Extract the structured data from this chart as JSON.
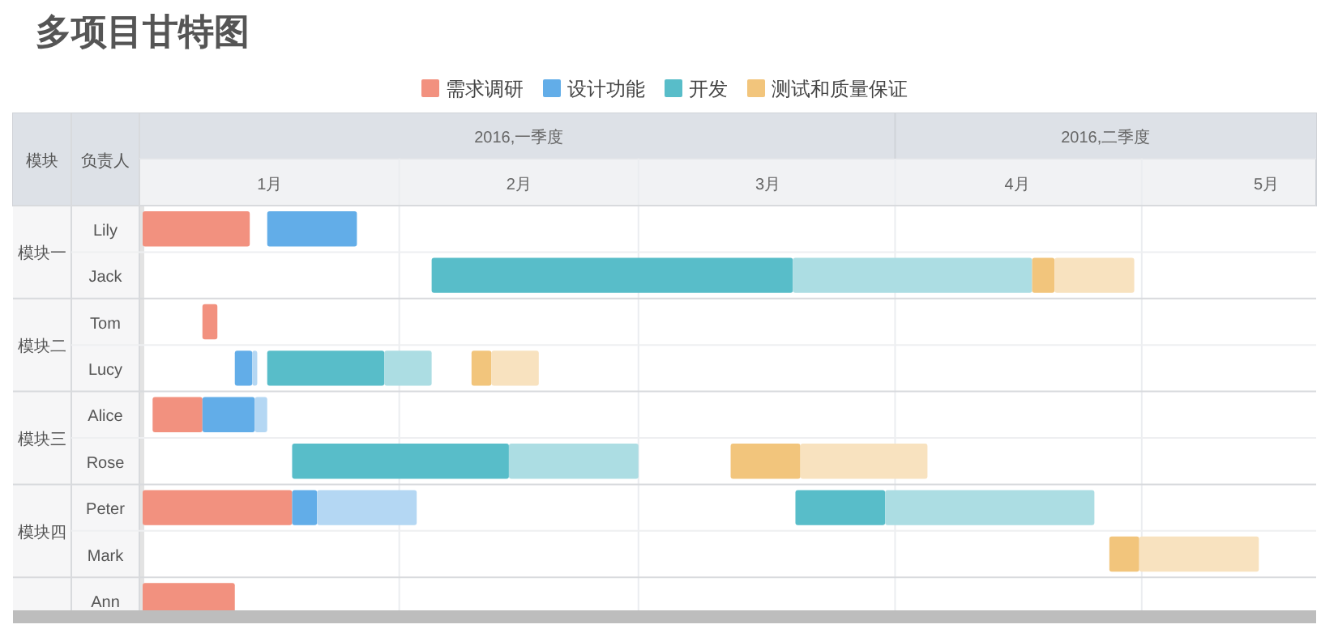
{
  "chart_data": {
    "type": "bar",
    "title": "多项目甘特图",
    "orientation": "horizontal",
    "legend": "top",
    "grid": true,
    "ylabel": "负责人",
    "annotations": [
      "模块",
      "模块一",
      "模块二",
      "模块三",
      "模块四",
      "2016,一季度",
      "2016,二季度"
    ],
    "categories": [
      "Lily",
      "Jack",
      "Tom",
      "Lucy",
      "Alice",
      "Rose",
      "Peter",
      "Mark",
      "Ann"
    ],
    "xlim": [
      0.49,
      5.2
    ],
    "xticks": [
      {
        "value": 1,
        "label": "1月"
      },
      {
        "value": 1.52,
        "label": null
      },
      {
        "value": 2,
        "label": "2月"
      },
      {
        "value": 2.48,
        "label": null
      },
      {
        "value": 3,
        "label": "3月"
      },
      {
        "value": 3.51,
        "label": null
      },
      {
        "value": 4,
        "label": "4月"
      },
      {
        "value": 4.5,
        "label": null
      },
      {
        "value": 5,
        "label": "5月"
      }
    ],
    "series": [
      {
        "name": "需求调研",
        "color": "#f2917f",
        "base": [
          0.49,
          null,
          0.73,
          null,
          0.53,
          null,
          0.49,
          null,
          0.49
        ],
        "values": [
          0.43,
          null,
          0.06,
          null,
          0.2,
          null,
          0.6,
          null,
          0.37
        ]
      },
      {
        "name": "设计功能",
        "color": "#62ade8",
        "base": [
          0.99,
          null,
          null,
          0.86,
          0.73,
          null,
          1.09,
          null,
          null
        ],
        "values": [
          0.36,
          null,
          null,
          0.07,
          0.21,
          null,
          0.1,
          null,
          null
        ]
      },
      {
        "color": "#b4d7f3",
        "base": [
          null,
          null,
          null,
          0.93,
          0.94,
          null,
          1.19,
          null,
          null
        ],
        "values": [
          null,
          null,
          null,
          0.02,
          0.05,
          null,
          0.4,
          null,
          null
        ]
      },
      {
        "name": "开发",
        "color": "#58bdc9",
        "base": [
          null,
          1.65,
          null,
          0.99,
          null,
          1.09,
          3.11,
          null,
          null
        ],
        "values": [
          null,
          1.45,
          null,
          0.47,
          null,
          0.87,
          0.36,
          null,
          null
        ]
      },
      {
        "color": "#acdde3",
        "base": [
          null,
          3.1,
          null,
          1.46,
          null,
          1.96,
          3.47,
          null,
          null
        ],
        "values": [
          null,
          0.96,
          null,
          0.19,
          null,
          0.52,
          0.84,
          null,
          null
        ]
      },
      {
        "name": "测试和质量保证",
        "color": "#f2c57c",
        "base": [
          null,
          4.06,
          null,
          1.81,
          null,
          2.85,
          null,
          4.37,
          null
        ],
        "values": [
          null,
          0.09,
          null,
          0.08,
          null,
          0.28,
          null,
          0.12,
          null
        ]
      },
      {
        "color": "#f8e2bf",
        "base": [
          null,
          4.15,
          null,
          1.89,
          null,
          3.13,
          null,
          4.49,
          null
        ],
        "values": [
          null,
          0.32,
          null,
          0.19,
          null,
          0.51,
          null,
          0.48,
          null
        ]
      }
    ]
  }
}
